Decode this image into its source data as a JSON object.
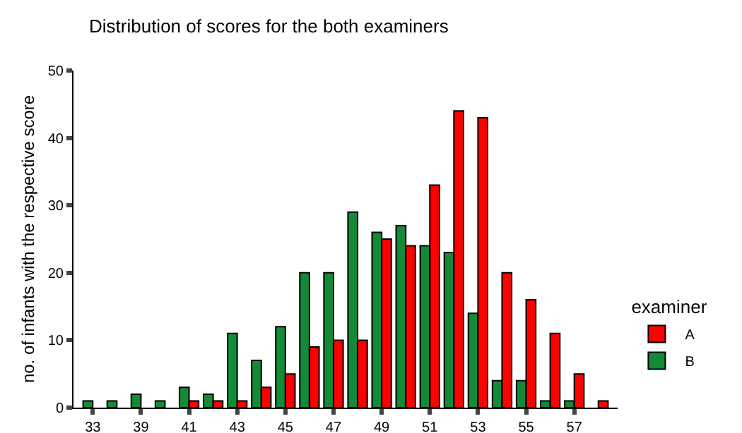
{
  "chart_data": {
    "type": "bar",
    "title": "Distribution of scores for the both examiners",
    "ylabel": "no. of infants with the respective score",
    "legend_title": "examiner",
    "categories": [
      "33",
      null,
      "39",
      null,
      "41",
      null,
      "43",
      null,
      "45",
      null,
      "47",
      null,
      "49",
      null,
      "51",
      null,
      "53",
      null,
      "55",
      null,
      "57",
      null
    ],
    "series": [
      {
        "name": "A",
        "color": "#ff0000",
        "values": [
          null,
          null,
          null,
          null,
          1,
          1,
          1,
          3,
          5,
          9,
          10,
          10,
          25,
          24,
          33,
          44,
          43,
          20,
          16,
          11,
          5,
          1
        ]
      },
      {
        "name": "B",
        "color": "#138a36",
        "values": [
          1,
          1,
          2,
          1,
          3,
          2,
          11,
          7,
          12,
          20,
          20,
          29,
          26,
          27,
          24,
          23,
          14,
          4,
          4,
          1,
          1,
          null
        ]
      }
    ],
    "ylim": [
      0,
      50
    ],
    "yticks": [
      0,
      10,
      20,
      30,
      40,
      50
    ],
    "grid": false,
    "legend": "right"
  }
}
